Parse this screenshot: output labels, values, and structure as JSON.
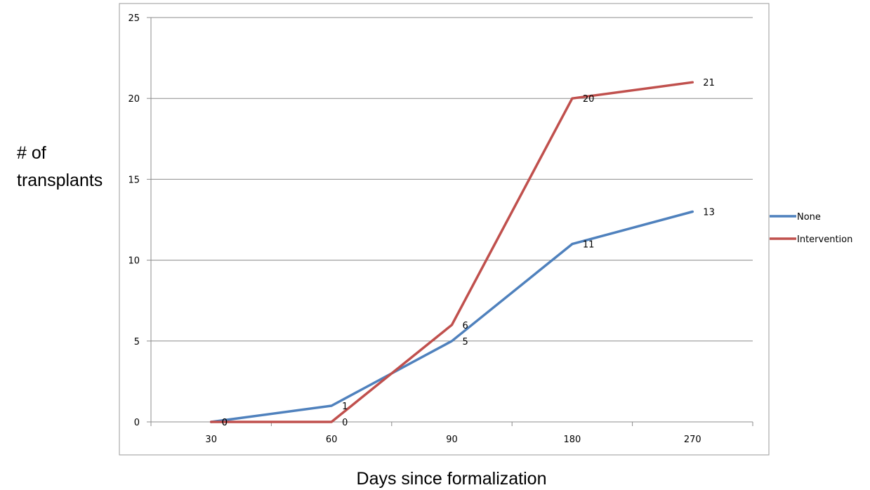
{
  "chart_data": {
    "type": "line",
    "title": "",
    "xlabel": "Days since formalization",
    "ylabel_lines": [
      "# of",
      "transplants"
    ],
    "categories": [
      "30",
      "60",
      "90",
      "180",
      "270"
    ],
    "ylim": [
      0,
      25
    ],
    "yticks": [
      0,
      5,
      10,
      15,
      20,
      25
    ],
    "grid": true,
    "legend_position": "right",
    "series": [
      {
        "name": "None",
        "color": "#4f81bd",
        "values": [
          0,
          1,
          5,
          11,
          13
        ],
        "labels": [
          "0",
          "1",
          "5",
          "11",
          "13"
        ]
      },
      {
        "name": "Intervention",
        "color": "#c0504d",
        "values": [
          0,
          0,
          6,
          20,
          21
        ],
        "labels": [
          "0",
          "0",
          "6",
          "20",
          "21"
        ]
      }
    ]
  }
}
